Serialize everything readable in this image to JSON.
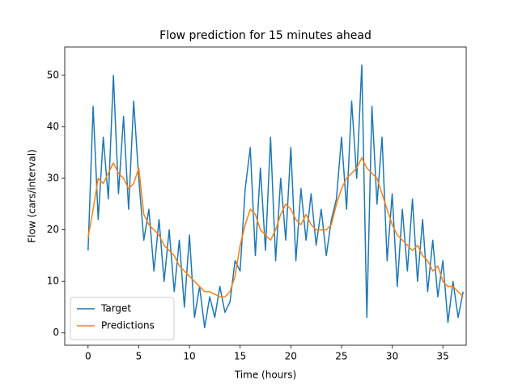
{
  "chart_data": {
    "type": "line",
    "title": "Flow prediction for 15 minutes ahead",
    "x_label": "Time (hours)",
    "y_label": "Flow (cars/interval)",
    "x": [
      0,
      0.5,
      1,
      1.5,
      2,
      2.5,
      3,
      3.5,
      4,
      4.5,
      5,
      5.5,
      6,
      6.5,
      7,
      7.5,
      8,
      8.5,
      9,
      9.5,
      10,
      10.5,
      11,
      11.5,
      12,
      12.5,
      13,
      13.5,
      14,
      14.5,
      15,
      15.5,
      16,
      16.5,
      17,
      17.5,
      18,
      18.5,
      19,
      19.5,
      20,
      20.5,
      21,
      21.5,
      22,
      22.5,
      23,
      23.5,
      24,
      24.5,
      25,
      25.5,
      26,
      26.5,
      27,
      27.5,
      28,
      28.5,
      29,
      29.5,
      30,
      30.5,
      31,
      31.5,
      32,
      32.5,
      33,
      33.5,
      34,
      34.5,
      35,
      35.5,
      36,
      36.5,
      37
    ],
    "series": [
      {
        "name": "Target",
        "color": "#1f77b4",
        "values": [
          16,
          44,
          22,
          38,
          26,
          50,
          27,
          42,
          24,
          45,
          30,
          18,
          24,
          12,
          22,
          10,
          20,
          8,
          18,
          5,
          19,
          3,
          9,
          1,
          7,
          3,
          9,
          4,
          6,
          14,
          12,
          28,
          36,
          15,
          32,
          16,
          38,
          14,
          30,
          18,
          36,
          14,
          28,
          18,
          27,
          17,
          24,
          15,
          22,
          26,
          38,
          24,
          45,
          30,
          52,
          3,
          44,
          25,
          38,
          14,
          27,
          9,
          24,
          12,
          26,
          10,
          22,
          8,
          18,
          7,
          14,
          2,
          10,
          3,
          8
        ]
      },
      {
        "name": "Predictions",
        "color": "#ff7f0e",
        "values": [
          18.5,
          24,
          30,
          29,
          31,
          33,
          31,
          30,
          28,
          29,
          32,
          23,
          21,
          20,
          19,
          17,
          16,
          15,
          13,
          12,
          11,
          10,
          9,
          8,
          8,
          7.5,
          7,
          7,
          8,
          11,
          17,
          21,
          24,
          23,
          20,
          19,
          18,
          20,
          23,
          25,
          24,
          22,
          21,
          23,
          21,
          20,
          20,
          20,
          21,
          25,
          28,
          30,
          31,
          32,
          34,
          32,
          31,
          30,
          27,
          24,
          21,
          19,
          18,
          17,
          16,
          17,
          15,
          14,
          12,
          13,
          10,
          9,
          9,
          8,
          7
        ]
      }
    ],
    "xlim": [
      -2.3,
      37.3
    ],
    "ylim": [
      -2.4,
      55.5
    ],
    "xticks": [
      0,
      5,
      10,
      15,
      20,
      25,
      30,
      35
    ],
    "yticks": [
      0,
      10,
      20,
      30,
      40,
      50
    ],
    "legend": "lower left"
  }
}
